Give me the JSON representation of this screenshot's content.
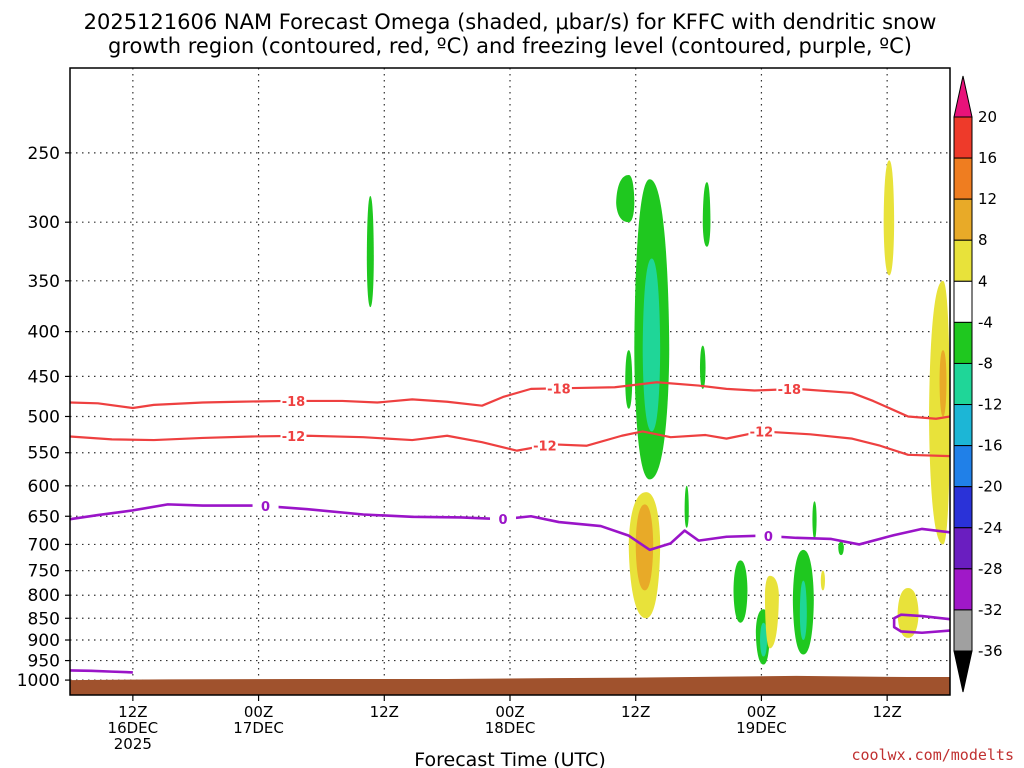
{
  "chart_data": {
    "type": "heatmap",
    "title_line1": "2025121606 NAM Forecast Omega (shaded, μbar/s) for KFFC with dendritic snow",
    "title_line2": "growth region (contoured, red, ºC) and freezing level (contoured, purple, ºC)",
    "xlabel": "Forecast Time (UTC)",
    "ylabel": "",
    "credit": "coolwx.com/modelts",
    "x_range_hours": [
      6,
      132
    ],
    "x_ticks": [
      {
        "hour": 15,
        "line1": "12Z",
        "line2": "16DEC",
        "line3": "2025"
      },
      {
        "hour": 33,
        "line1": "00Z",
        "line2": "17DEC",
        "line3": ""
      },
      {
        "hour": 51,
        "line1": "12Z",
        "line2": "",
        "line3": ""
      },
      {
        "hour": 69,
        "line1": "00Z",
        "line2": "18DEC",
        "line3": ""
      },
      {
        "hour": 87,
        "line1": "12Z",
        "line2": "",
        "line3": ""
      },
      {
        "hour": 105,
        "line1": "00Z",
        "line2": "19DEC",
        "line3": ""
      },
      {
        "hour": 123,
        "line1": "12Z",
        "line2": "",
        "line3": ""
      }
    ],
    "y_axis_hpa": {
      "top": 200,
      "bottom": 1040,
      "scale": "log",
      "inverted": true
    },
    "y_ticks": [
      250,
      300,
      350,
      400,
      450,
      500,
      550,
      600,
      650,
      700,
      750,
      800,
      850,
      900,
      950,
      1000
    ],
    "grid": "dotted",
    "colorbar": {
      "labels": [
        "20",
        "16",
        "12",
        "8",
        "4",
        "-4",
        "-8",
        "-12",
        "-16",
        "-20",
        "-24",
        "-28",
        "-32",
        "-36"
      ],
      "colors": [
        "#e8127a",
        "#ee3a2a",
        "#ef7d20",
        "#e8aa28",
        "#e8e23a",
        "#ffffff",
        "#1fc81f",
        "#1fd698",
        "#1cb6d6",
        "#2080e8",
        "#2a32d8",
        "#6a1ec0",
        "#a018c8",
        "#a0a0a0",
        "#000000"
      ]
    },
    "contours": {
      "dendritic_-18C": {
        "color": "#ee4040",
        "label": "-18",
        "points": [
          [
            6,
            482
          ],
          [
            10,
            483
          ],
          [
            15,
            489
          ],
          [
            18,
            485
          ],
          [
            25,
            482
          ],
          [
            30,
            481
          ],
          [
            37,
            480
          ],
          [
            45,
            480
          ],
          [
            50,
            482
          ],
          [
            55,
            478
          ],
          [
            60,
            481
          ],
          [
            65,
            486
          ],
          [
            68,
            475
          ],
          [
            72,
            465
          ],
          [
            78,
            464
          ],
          [
            84,
            463
          ],
          [
            90,
            457
          ],
          [
            96,
            461
          ],
          [
            100,
            465
          ],
          [
            104,
            467
          ],
          [
            110,
            465
          ],
          [
            118,
            470
          ],
          [
            121,
            480
          ],
          [
            126,
            500
          ],
          [
            130,
            503
          ],
          [
            132,
            500
          ]
        ]
      },
      "dendritic_-12C": {
        "color": "#ee4040",
        "label": "-12",
        "points": [
          [
            6,
            527
          ],
          [
            12,
            531
          ],
          [
            18,
            532
          ],
          [
            25,
            529
          ],
          [
            32,
            527
          ],
          [
            40,
            526
          ],
          [
            48,
            528
          ],
          [
            55,
            532
          ],
          [
            60,
            526
          ],
          [
            65,
            535
          ],
          [
            70,
            547
          ],
          [
            75,
            538
          ],
          [
            80,
            540
          ],
          [
            85,
            526
          ],
          [
            88,
            520
          ],
          [
            92,
            528
          ],
          [
            97,
            525
          ],
          [
            100,
            530
          ],
          [
            105,
            520
          ],
          [
            112,
            524
          ],
          [
            118,
            530
          ],
          [
            122,
            540
          ],
          [
            126,
            553
          ],
          [
            132,
            555
          ]
        ]
      },
      "freezing_0C": {
        "color": "#9a14c8",
        "label": "0",
        "points": [
          [
            6,
            655
          ],
          [
            10,
            648
          ],
          [
            15,
            640
          ],
          [
            20,
            630
          ],
          [
            25,
            632
          ],
          [
            33,
            632
          ],
          [
            40,
            638
          ],
          [
            48,
            647
          ],
          [
            55,
            651
          ],
          [
            62,
            652
          ],
          [
            68,
            655
          ],
          [
            72,
            650
          ],
          [
            76,
            660
          ],
          [
            82,
            667
          ],
          [
            86,
            684
          ],
          [
            89,
            710
          ],
          [
            92,
            698
          ],
          [
            94,
            675
          ],
          [
            96,
            693
          ],
          [
            100,
            686
          ],
          [
            105,
            684
          ],
          [
            110,
            688
          ],
          [
            115,
            690
          ],
          [
            119,
            700
          ],
          [
            124,
            683
          ],
          [
            128,
            672
          ],
          [
            132,
            678
          ]
        ]
      },
      "freezing_0C_low": {
        "color": "#9a14c8",
        "label": "",
        "points": [
          [
            6,
            975
          ],
          [
            9,
            976
          ],
          [
            12,
            978
          ],
          [
            15,
            980
          ]
        ]
      },
      "freezing_0C_loop": {
        "color": "#9a14c8",
        "label": "",
        "points": [
          [
            132,
            852
          ],
          [
            128,
            845
          ],
          [
            125,
            842
          ],
          [
            124,
            850
          ],
          [
            124,
            870
          ],
          [
            125,
            880
          ],
          [
            128,
            883
          ],
          [
            132,
            878
          ]
        ]
      }
    },
    "omega_cells": [
      {
        "value": -6,
        "x": [
          48.5,
          49.0,
          49.5
        ],
        "p": [
          280,
          330,
          375
        ]
      },
      {
        "value": -6,
        "x": [
          84.2,
          86.0,
          86.8
        ],
        "p": [
          265,
          285,
          300
        ]
      },
      {
        "value": -6,
        "x": [
          86.8,
          89.0,
          91.8
        ],
        "p": [
          268,
          420,
          590
        ]
      },
      {
        "value": -10,
        "x": [
          88.0,
          89.3,
          90.5
        ],
        "p": [
          330,
          420,
          520
        ]
      },
      {
        "value": -6,
        "x": [
          96.6,
          97.2,
          97.7
        ],
        "p": [
          270,
          300,
          320
        ]
      },
      {
        "value": -6,
        "x": [
          85.5,
          86.0,
          86.5
        ],
        "p": [
          420,
          455,
          490
        ]
      },
      {
        "value": -6,
        "x": [
          96.2,
          96.6,
          97.0
        ],
        "p": [
          415,
          440,
          465
        ]
      },
      {
        "value": -6,
        "x": [
          94.0,
          94.3,
          94.6
        ],
        "p": [
          600,
          640,
          670
        ]
      },
      {
        "value": -6,
        "x": [
          101.0,
          102.0,
          103.0
        ],
        "p": [
          730,
          790,
          860
        ]
      },
      {
        "value": -6,
        "x": [
          104.2,
          105.3,
          106.2
        ],
        "p": [
          830,
          880,
          960
        ]
      },
      {
        "value": -10,
        "x": [
          104.8,
          105.3,
          105.8
        ],
        "p": [
          860,
          900,
          940
        ]
      },
      {
        "value": -6,
        "x": [
          109.5,
          111.0,
          112.5
        ],
        "p": [
          710,
          810,
          935
        ]
      },
      {
        "value": -10,
        "x": [
          110.5,
          111.0,
          111.5
        ],
        "p": [
          770,
          840,
          900
        ]
      },
      {
        "value": -6,
        "x": [
          112.3,
          112.6,
          112.9
        ],
        "p": [
          625,
          655,
          690
        ]
      },
      {
        "value": -6,
        "x": [
          116.0,
          116.4,
          116.8
        ],
        "p": [
          695,
          705,
          720
        ]
      },
      {
        "value": 6,
        "x": [
          122.5,
          123.3,
          124.0
        ],
        "p": [
          255,
          300,
          345
        ]
      },
      {
        "value": 6,
        "x": [
          129.0,
          131.0,
          132.0
        ],
        "p": [
          350,
          500,
          700
        ]
      },
      {
        "value": 10,
        "x": [
          130.5,
          131.0,
          131.5
        ],
        "p": [
          420,
          455,
          500
        ]
      },
      {
        "value": 6,
        "x": [
          86.0,
          88.5,
          90.5
        ],
        "p": [
          610,
          700,
          850
        ]
      },
      {
        "value": 10,
        "x": [
          87.0,
          88.3,
          89.5
        ],
        "p": [
          630,
          700,
          790
        ]
      },
      {
        "value": 6,
        "x": [
          105.5,
          106.2,
          107.5
        ],
        "p": [
          760,
          800,
          920
        ]
      },
      {
        "value": 6,
        "x": [
          124.5,
          126.0,
          127.5
        ],
        "p": [
          785,
          840,
          895
        ]
      },
      {
        "value": 6,
        "x": [
          113.5,
          113.8,
          114.1
        ],
        "p": [
          750,
          770,
          790
        ]
      }
    ],
    "terrain": {
      "color": "#a0522d",
      "points": [
        [
          6,
          1000
        ],
        [
          20,
          998
        ],
        [
          40,
          997
        ],
        [
          60,
          997
        ],
        [
          75,
          995
        ],
        [
          90,
          993
        ],
        [
          100,
          991
        ],
        [
          110,
          989
        ],
        [
          120,
          991
        ],
        [
          126,
          992
        ],
        [
          132,
          992
        ]
      ]
    }
  }
}
